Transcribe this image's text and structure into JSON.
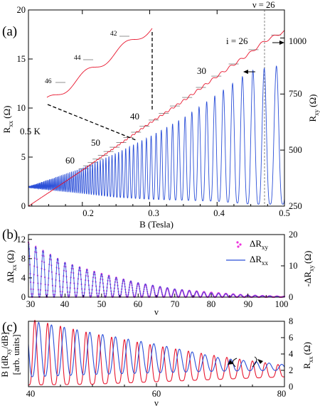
{
  "panels": {
    "a": "(a)",
    "b": "(b)",
    "c": "(c)"
  },
  "colors": {
    "rxx": "#2b4fd8",
    "rxy": "#e8162e",
    "delta_rxy": "#ee33dd",
    "fine_lines": "#777777",
    "frame": "#000000"
  },
  "panel_a": {
    "xlabel": "B (Tesla)",
    "ylabel_left_main": "R",
    "ylabel_left_sub": "xx",
    "ylabel_left_unit": "(Ω)",
    "ylabel_right_main": "R",
    "ylabel_right_sub": "xy",
    "ylabel_right_unit": "(Ω)",
    "temperature": "0.5 K",
    "nu_label": "ν = 26",
    "i_label": "i = 26",
    "filling_labels": [
      "30",
      "40",
      "50",
      "60"
    ],
    "inset_labels": [
      "42",
      "44",
      "46"
    ],
    "xticks": [
      "0.2",
      "0.3",
      "0.4",
      "0.5"
    ],
    "yticks_left": [
      "0",
      "5",
      "10",
      "15",
      "20"
    ],
    "yticks_right": [
      "250",
      "500",
      "750",
      "1000"
    ]
  },
  "panel_b": {
    "xlabel": "ν",
    "ylabel_left_main": "ΔR",
    "ylabel_left_sub": "xx",
    "ylabel_left_unit": "(Ω)",
    "ylabel_right_main": "-ΔR",
    "ylabel_right_sub": "xy",
    "ylabel_right_unit": "(Ω)",
    "legend_rxy_main": "ΔR",
    "legend_rxy_sub": "xy",
    "legend_rxx_main": "ΔR",
    "legend_rxx_sub": "xx",
    "xticks": [
      "30",
      "40",
      "50",
      "60",
      "70",
      "80",
      "90",
      "100"
    ],
    "yticks_left": [
      "0",
      "4",
      "8",
      "12"
    ],
    "yticks_right": [
      "0",
      "10",
      "20"
    ]
  },
  "panel_c": {
    "xlabel": "ν",
    "ylabel_left_line1": "B [dR",
    "ylabel_left_sub": "xy",
    "ylabel_left_line1_end": "/dB]",
    "ylabel_left_line2": "[arb. units]",
    "ylabel_right_main": "R",
    "ylabel_right_sub": "xx",
    "ylabel_right_unit": "(Ω)",
    "xticks": [
      "40",
      "60",
      "80"
    ],
    "yticks_right": [
      "0",
      "2",
      "4",
      "6",
      "8"
    ]
  },
  "chart_data": [
    {
      "type": "line",
      "panel": "a",
      "title": "",
      "xlabel": "B (Tesla)",
      "ylabel": "Rxx (Ω)",
      "ylabel_right": "Rxy (Ω)",
      "xlim": [
        0.12,
        0.5
      ],
      "ylim": [
        0,
        20
      ],
      "ylim_right": [
        250,
        1125
      ],
      "series": [
        {
          "name": "Rxx",
          "axis": "left",
          "description_points": {
            "B": [
              0.12,
              0.2,
              0.25,
              0.3,
              0.35,
              0.4,
              0.45,
              0.49
            ],
            "peak_envelope": [
              2.0,
              3.9,
              5.4,
              7.1,
              9.0,
              11.4,
              13.8,
              14.3
            ],
            "valley_min": [
              1.9,
              1.3,
              0.9,
              0.7,
              0.6,
              0.5,
              0.2,
              0.2
            ]
          }
        },
        {
          "name": "Rxy",
          "axis": "right",
          "x": [
            0.12,
            0.2,
            0.25,
            0.3,
            0.35,
            0.4,
            0.45,
            0.47,
            0.5
          ],
          "y": [
            250,
            410,
            515,
            620,
            720,
            830,
            935,
            985,
            1030
          ]
        }
      ],
      "plateaus_nu": [
        26,
        30,
        40,
        50,
        60
      ],
      "inset_plateaus": [
        42,
        44,
        46
      ],
      "vline_nu": 26
    },
    {
      "type": "line",
      "panel": "b",
      "xlabel": "ν",
      "ylabel": "ΔRxx (Ω)",
      "ylabel_right": "-ΔRxy (Ω)",
      "xlim": [
        30,
        100
      ],
      "ylim": [
        0,
        13
      ],
      "ylim_right": [
        0,
        20
      ],
      "series": [
        {
          "name": "ΔRxy",
          "axis": "right",
          "style": "dots",
          "nu": [
            30,
            40,
            50,
            60,
            70,
            80,
            90,
            100
          ],
          "amplitude": [
            17.5,
            11.0,
            7.5,
            4.5,
            2.5,
            1.5,
            0.6,
            0.2
          ]
        },
        {
          "name": "ΔRxx",
          "axis": "left",
          "style": "line",
          "nu": [
            30,
            40,
            50,
            60,
            70,
            80,
            90,
            100
          ],
          "amplitude": [
            11.3,
            7.2,
            4.8,
            3.0,
            1.7,
            0.9,
            0.4,
            0.1
          ]
        }
      ]
    },
    {
      "type": "line",
      "panel": "c",
      "xlabel": "ν",
      "ylabel": "B [dRxy/dB] [arb. units]",
      "ylabel_right": "Rxx (Ω)",
      "xlim": [
        40,
        80
      ],
      "ylim_right": [
        0,
        8
      ],
      "series": [
        {
          "name": "B dRxy/dB",
          "axis": "left",
          "nu": [
            40,
            50,
            60,
            70,
            80
          ],
          "peak": [
            8.3,
            6.5,
            5.0,
            3.7,
            2.6
          ],
          "valley": [
            0.2,
            0.3,
            0.6,
            0.9,
            1.2
          ]
        },
        {
          "name": "Rxx",
          "axis": "right",
          "nu": [
            40,
            50,
            60,
            70,
            80
          ],
          "peak": [
            8.1,
            6.6,
            5.2,
            3.5,
            2.7
          ],
          "valley": [
            1.2,
            1.5,
            1.7,
            1.9,
            2.0
          ]
        }
      ]
    }
  ]
}
